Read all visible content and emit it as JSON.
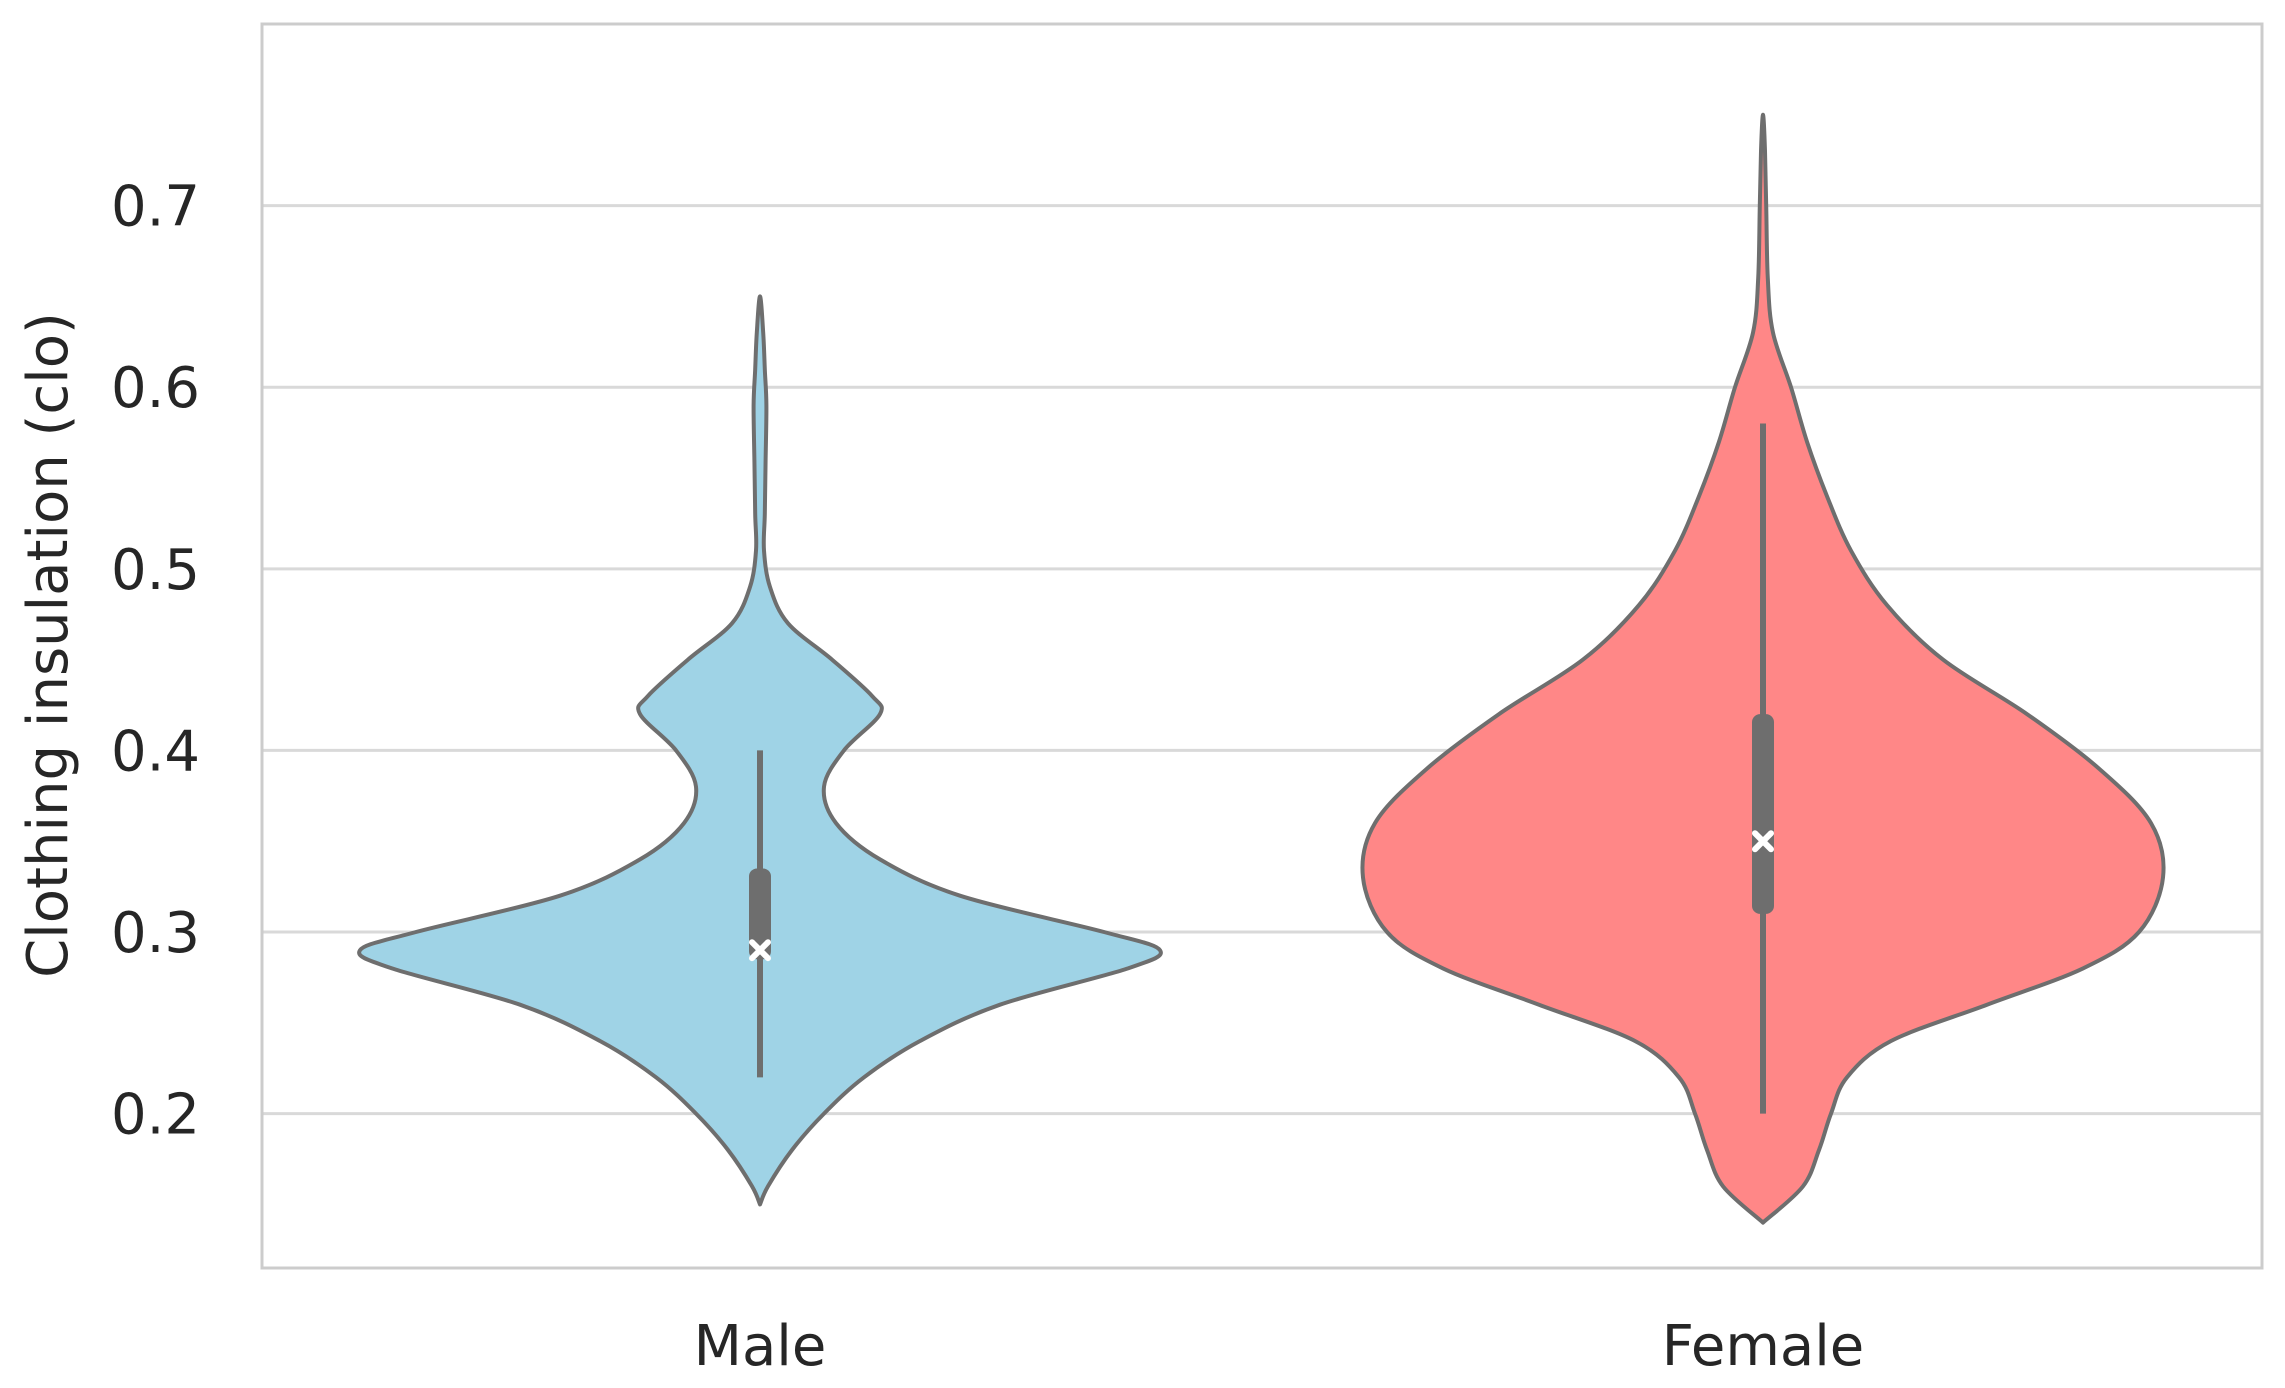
{
  "chart_data": {
    "type": "violin",
    "title": "",
    "xlabel": "",
    "ylabel": "Clothing insulation (clo)",
    "ylim": [
      0.115,
      0.8
    ],
    "yticks": [
      0.2,
      0.3,
      0.4,
      0.5,
      0.6,
      0.7
    ],
    "ytick_labels": [
      "0.2",
      "0.3",
      "0.4",
      "0.5",
      "0.6",
      "0.7"
    ],
    "grid": "horizontal",
    "categories": [
      "Male",
      "Female"
    ],
    "series": [
      {
        "category": "Male",
        "color": "#9fd3e6",
        "range": [
          0.15,
          0.65
        ],
        "whisker": [
          0.22,
          0.4
        ],
        "q1": 0.285,
        "q3": 0.335,
        "mean": 0.29,
        "density": [
          [
            0.15,
            0.0
          ],
          [
            0.16,
            0.02
          ],
          [
            0.18,
            0.08
          ],
          [
            0.2,
            0.16
          ],
          [
            0.22,
            0.26
          ],
          [
            0.24,
            0.4
          ],
          [
            0.26,
            0.6
          ],
          [
            0.28,
            0.92
          ],
          [
            0.29,
            1.0
          ],
          [
            0.3,
            0.86
          ],
          [
            0.32,
            0.5
          ],
          [
            0.34,
            0.3
          ],
          [
            0.36,
            0.19
          ],
          [
            0.38,
            0.16
          ],
          [
            0.4,
            0.21
          ],
          [
            0.42,
            0.3
          ],
          [
            0.43,
            0.28
          ],
          [
            0.45,
            0.18
          ],
          [
            0.47,
            0.07
          ],
          [
            0.49,
            0.025
          ],
          [
            0.51,
            0.01
          ],
          [
            0.53,
            0.012
          ],
          [
            0.56,
            0.014
          ],
          [
            0.59,
            0.016
          ],
          [
            0.61,
            0.012
          ],
          [
            0.63,
            0.008
          ],
          [
            0.65,
            0.0
          ]
        ]
      },
      {
        "category": "Female",
        "color": "#ff8787",
        "range": [
          0.14,
          0.75
        ],
        "whisker": [
          0.2,
          0.58
        ],
        "q1": 0.31,
        "q3": 0.42,
        "mean": 0.35,
        "density": [
          [
            0.14,
            0.0
          ],
          [
            0.16,
            0.1
          ],
          [
            0.18,
            0.14
          ],
          [
            0.2,
            0.17
          ],
          [
            0.22,
            0.21
          ],
          [
            0.24,
            0.32
          ],
          [
            0.26,
            0.56
          ],
          [
            0.28,
            0.8
          ],
          [
            0.3,
            0.94
          ],
          [
            0.33,
            1.0
          ],
          [
            0.36,
            0.97
          ],
          [
            0.39,
            0.84
          ],
          [
            0.42,
            0.66
          ],
          [
            0.45,
            0.45
          ],
          [
            0.48,
            0.31
          ],
          [
            0.51,
            0.22
          ],
          [
            0.54,
            0.16
          ],
          [
            0.57,
            0.11
          ],
          [
            0.6,
            0.07
          ],
          [
            0.63,
            0.025
          ],
          [
            0.66,
            0.012
          ],
          [
            0.7,
            0.008
          ],
          [
            0.73,
            0.005
          ],
          [
            0.75,
            0.0
          ]
        ]
      }
    ]
  },
  "style": {
    "outline_color": "#6e6e6e",
    "grid_color": "#d9d9d9",
    "frame_color": "#cccccc",
    "mean_marker_color": "#ffffff"
  }
}
